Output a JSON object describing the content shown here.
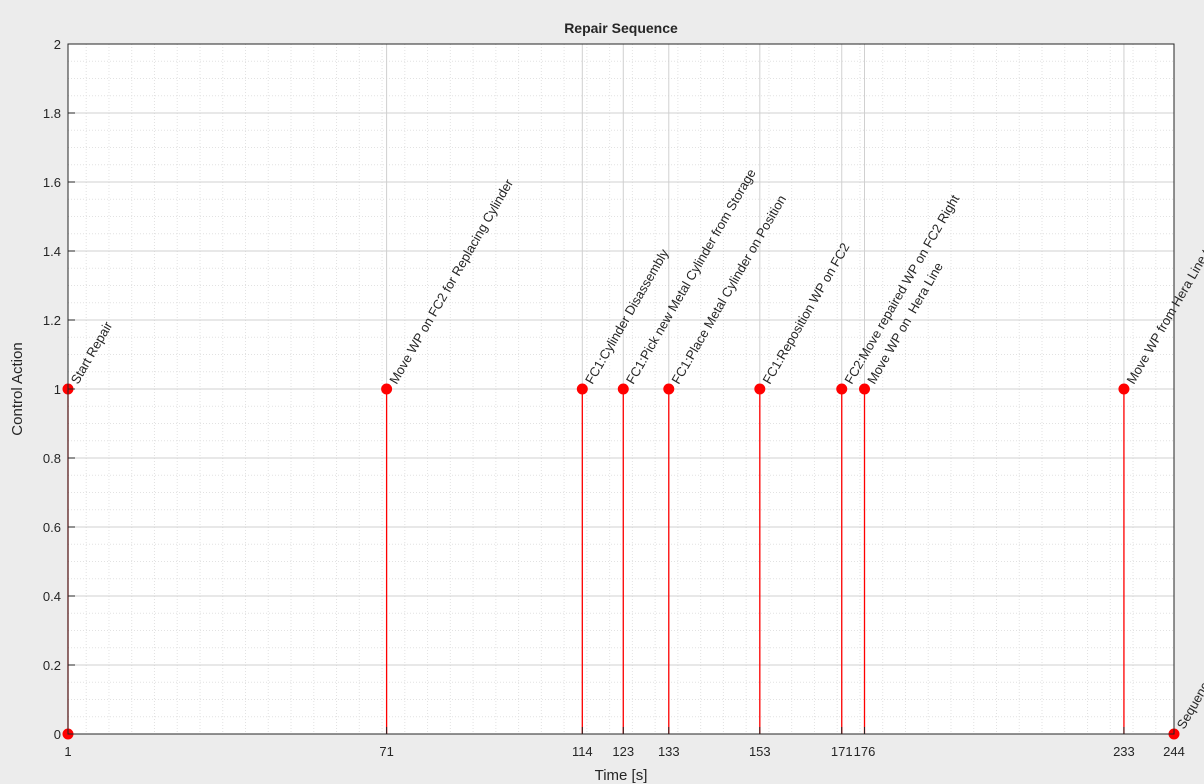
{
  "chart_data": {
    "type": "stem",
    "title": "Repair Sequence",
    "xlabel": "Time [s]",
    "ylabel": "Control Action",
    "xlim": [
      1,
      244
    ],
    "ylim": [
      0,
      2
    ],
    "x_ticks": [
      1,
      71,
      114,
      123,
      133,
      153,
      171,
      176,
      233,
      244
    ],
    "x_tick_labels": [
      "1",
      "71",
      "114",
      "123",
      "133",
      "153",
      "171",
      "176",
      "233",
      "244"
    ],
    "y_ticks": [
      0,
      0.2,
      0.4,
      0.6,
      0.8,
      1,
      1.2,
      1.4,
      1.6,
      1.8,
      2
    ],
    "y_tick_labels": [
      "0",
      "0.2",
      "0.4",
      "0.6",
      "0.8",
      "1",
      "1.2",
      "1.4",
      "1.6",
      "1.8",
      "2"
    ],
    "grid": true,
    "minor_grid": true,
    "series_color": "#ff0000",
    "points": [
      {
        "x": 1,
        "y": 0
      },
      {
        "x": 1,
        "y": 1,
        "label": "Start Repair"
      },
      {
        "x": 71,
        "y": 1,
        "label": "Move WP on FC2 for Replacing Cylinder"
      },
      {
        "x": 114,
        "y": 1,
        "label": "FC1:Cylinder Disassembly"
      },
      {
        "x": 123,
        "y": 1,
        "label": "FC1:Pick new Metal Cylinder from Storage"
      },
      {
        "x": 133,
        "y": 1,
        "label": "FC1:Place Metal Cylinder on Position"
      },
      {
        "x": 153,
        "y": 1,
        "label": "FC1:Reposition WP on FC2"
      },
      {
        "x": 171,
        "y": 1,
        "label": "FC2:Move repaired WP on FC2 Right"
      },
      {
        "x": 176,
        "y": 1,
        "label": "Move WP on  Hera Line"
      },
      {
        "x": 233,
        "y": 1,
        "label": "Move WP from Hera Line to WH Left"
      },
      {
        "x": 244,
        "y": 0,
        "label": "Sequence Ended"
      }
    ]
  }
}
